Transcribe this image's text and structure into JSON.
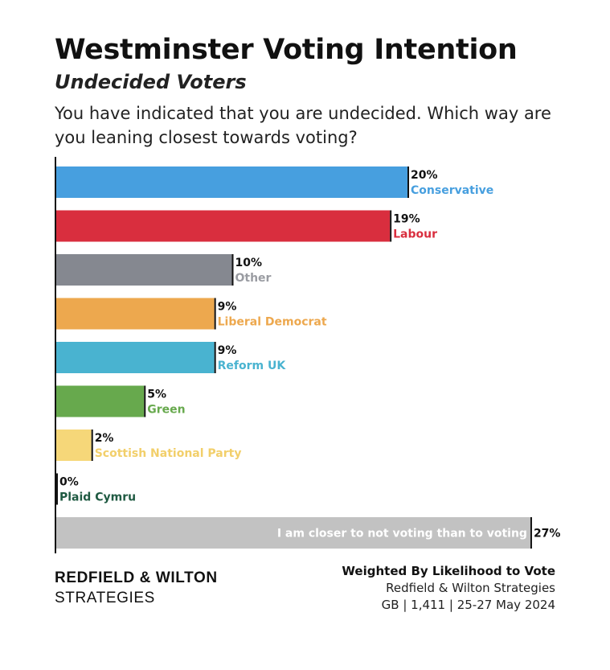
{
  "header": {
    "title": "Westminster Voting Intention",
    "subtitle": "Undecided Voters",
    "question": "You have indicated that you are undecided. Which way are you leaning closest towards voting?"
  },
  "chart_data": {
    "type": "bar",
    "orientation": "horizontal",
    "unit": "%",
    "xlim": [
      0,
      27
    ],
    "grid": false,
    "categories": [
      "Conservative",
      "Labour",
      "Other",
      "Liberal Democrat",
      "Reform UK",
      "Green",
      "Scottish National Party",
      "Plaid Cymru",
      "I am closer to not voting than to voting"
    ],
    "values": [
      20,
      19,
      10,
      9,
      9,
      5,
      2,
      0,
      27
    ],
    "value_labels": [
      "20%",
      "19%",
      "10%",
      "9%",
      "9%",
      "5%",
      "2%",
      "0%",
      "27%"
    ],
    "colors": [
      "#479fdf",
      "#d92e3e",
      "#858890",
      "#eda84e",
      "#49b3d0",
      "#67a94d",
      "#f6d779",
      "#1f5a42",
      "#c2c2c2"
    ],
    "label_colors": [
      "#479fdf",
      "#d92e3e",
      "#9a9ca2",
      "#eda84e",
      "#49b3d0",
      "#67a94d",
      "#f2cf6a",
      "#1f5a42",
      "#ffffff"
    ]
  },
  "footer": {
    "brand_name": "REDFIELD & WILTON",
    "brand_sub": "STRATEGIES",
    "weighted": "Weighted By Likelihood to Vote",
    "source": "Redfield & Wilton Strategies",
    "sample": "GB | 1,411 | 25-27 May 2024"
  }
}
